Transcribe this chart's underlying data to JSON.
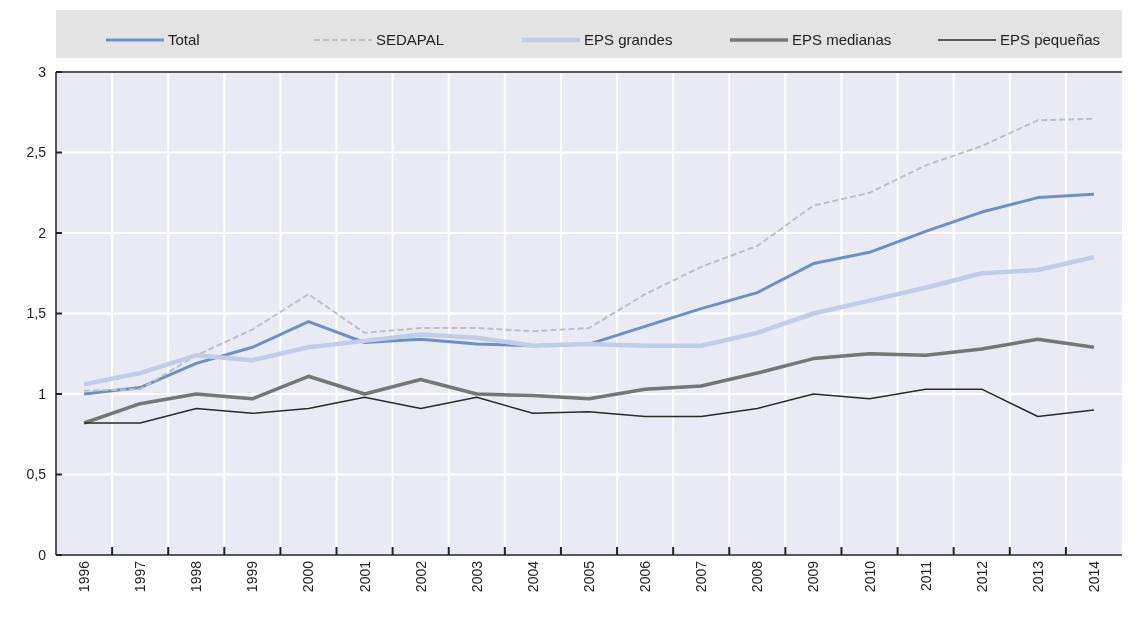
{
  "chart_data": {
    "type": "line",
    "categories": [
      "1996",
      "1997",
      "1998",
      "1999",
      "2000",
      "2001",
      "2002",
      "2003",
      "2004",
      "2005",
      "2006",
      "2007",
      "2008",
      "2009",
      "2010",
      "2011",
      "2012",
      "2013",
      "2014"
    ],
    "series": [
      {
        "name": "Total",
        "color": "#6b8fc9",
        "values": [
          1.0,
          1.04,
          1.19,
          1.29,
          1.45,
          1.32,
          1.34,
          1.31,
          1.3,
          1.31,
          1.42,
          1.53,
          1.63,
          1.81,
          1.88,
          2.01,
          2.13,
          2.22,
          2.24
        ]
      },
      {
        "name": "SEDAPAL",
        "color": "#c0c0c4",
        "line_style": "dashed",
        "values": [
          1.02,
          1.03,
          1.24,
          1.4,
          1.62,
          1.38,
          1.41,
          1.41,
          1.39,
          1.41,
          1.62,
          1.79,
          1.92,
          2.17,
          2.25,
          2.42,
          2.54,
          2.7,
          2.71
        ]
      },
      {
        "name": "EPS grandes",
        "color": "#c2cce6",
        "values": [
          1.06,
          1.13,
          1.24,
          1.21,
          1.29,
          1.33,
          1.37,
          1.35,
          1.3,
          1.31,
          1.3,
          1.3,
          1.38,
          1.5,
          1.58,
          1.66,
          1.75,
          1.77,
          1.85
        ]
      },
      {
        "name": "EPS medianas",
        "color": "#767676",
        "values": [
          0.82,
          0.94,
          1.0,
          0.97,
          1.11,
          1.0,
          1.09,
          1.0,
          0.99,
          0.97,
          1.03,
          1.05,
          1.13,
          1.22,
          1.25,
          1.24,
          1.28,
          1.34,
          1.29
        ]
      },
      {
        "name": "EPS pequeñas",
        "color": "#2a2a2a",
        "values": [
          0.82,
          0.82,
          0.91,
          0.88,
          0.91,
          0.98,
          0.91,
          0.98,
          0.88,
          0.89,
          0.86,
          0.86,
          0.91,
          1.0,
          0.97,
          1.03,
          1.03,
          0.86,
          0.9
        ]
      }
    ],
    "ylim": [
      0,
      3
    ],
    "yticks": [
      0,
      {
        "value": 0.5,
        "label": "0,5"
      },
      1,
      {
        "value": 1.5,
        "label": "1,5"
      },
      2,
      {
        "value": 2.5,
        "label": "2,5"
      },
      3
    ],
    "grid": true,
    "legend": "top",
    "line_style": "solid",
    "marker": "none"
  }
}
